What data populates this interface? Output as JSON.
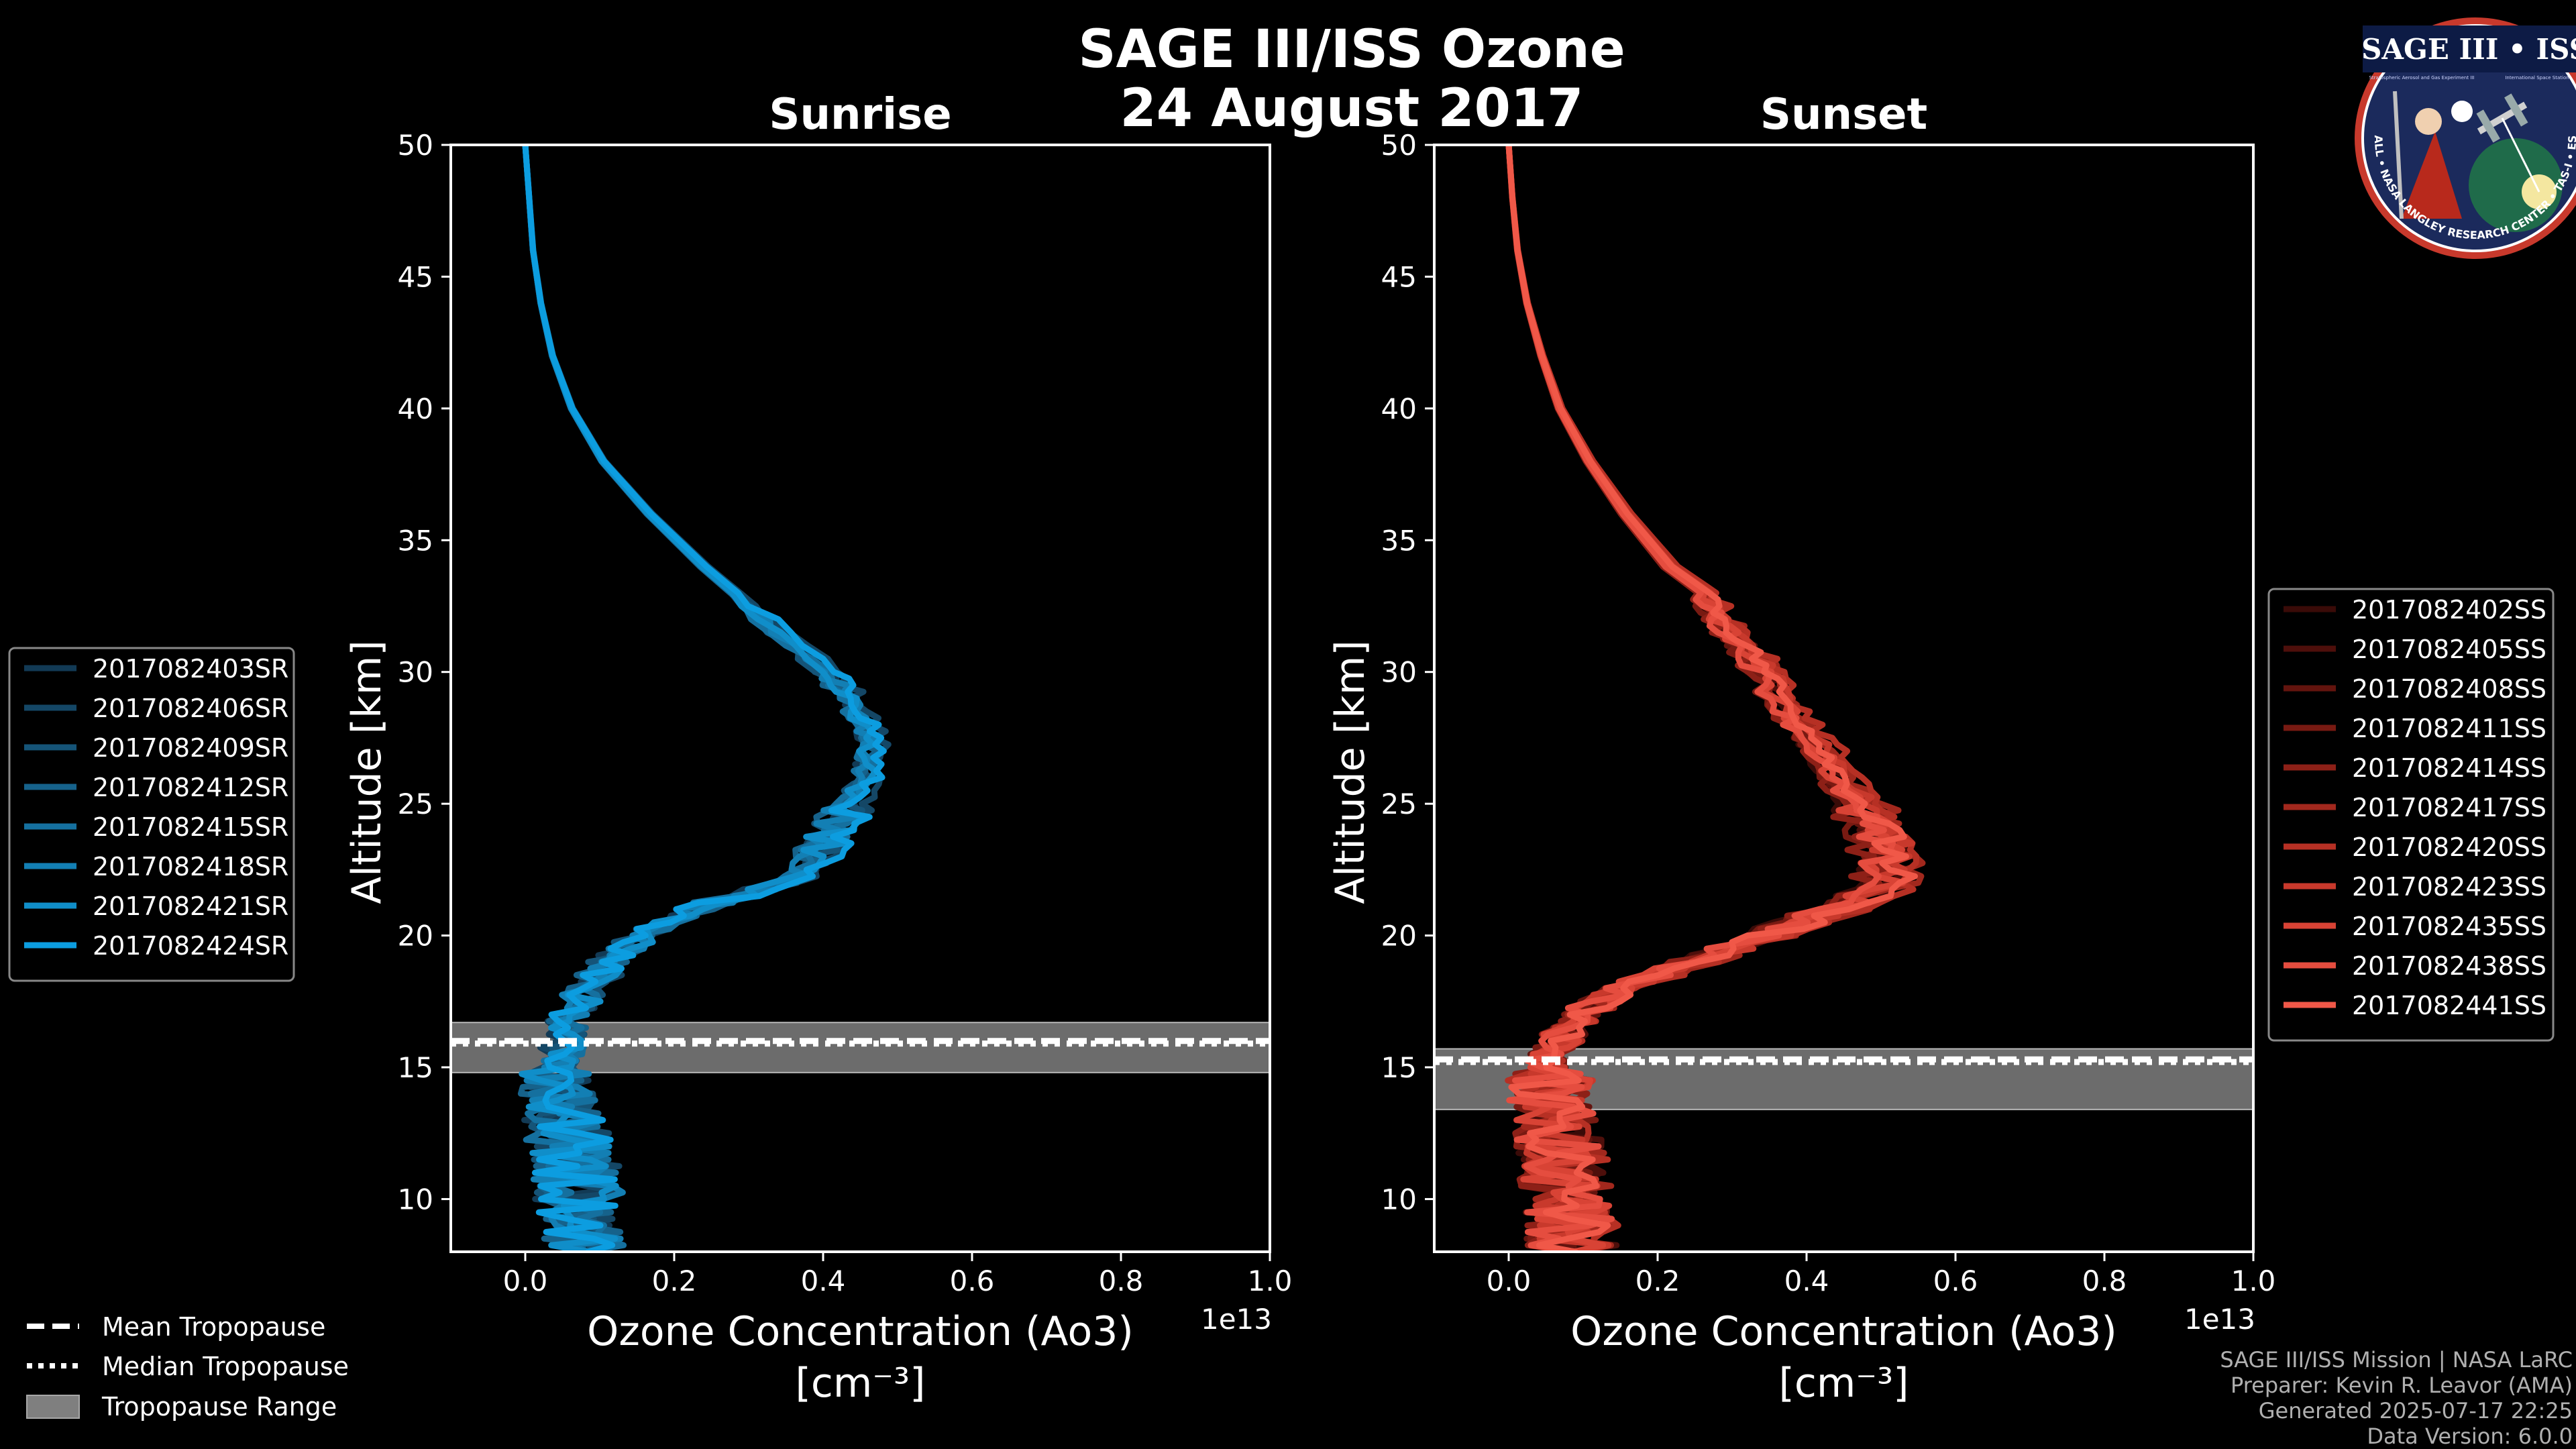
{
  "title_line1": "SAGE III/ISS Ozone",
  "title_line2": "24 August 2017",
  "logo": {
    "text": "SAGE III • ISS",
    "ring_text": "BALL • NASA LANGLEY RESEARCH CENTER • TAS-I • ESA",
    "sub_left": "Stratospheric Aerosol and Gas Experiment III",
    "sub_right": "International Space Station"
  },
  "footer": {
    "line1": "SAGE III/ISS Mission | NASA LaRC",
    "line2": "Preparer: Kevin R. Leavor (AMA)",
    "line3": "Generated 2025-07-17 22:25",
    "line4": "Data Version: 6.0.0"
  },
  "tropo_legend": {
    "mean": "Mean Tropopause",
    "median": "Median Tropopause",
    "range": "Tropopause Range"
  },
  "chart_data": [
    {
      "type": "line",
      "title": "Sunrise",
      "xlabel_line1": "Ozone Concentration (Ao3)",
      "xlabel_line2": "[cm⁻³]",
      "ylabel": "Altitude [km]",
      "x_offset_text": "1e13",
      "xlim": [
        -0.1,
        1.0
      ],
      "ylim": [
        8,
        50
      ],
      "xticks": [
        0.0,
        0.2,
        0.4,
        0.6,
        0.8,
        1.0
      ],
      "xtick_labels": [
        "0.0",
        "0.2",
        "0.4",
        "0.6",
        "0.8",
        "1.0"
      ],
      "yticks": [
        10,
        15,
        20,
        25,
        30,
        35,
        40,
        45,
        50
      ],
      "ytick_labels": [
        "10",
        "15",
        "20",
        "25",
        "30",
        "35",
        "40",
        "45",
        "50"
      ],
      "x_units": "1e13 cm^-3",
      "tropopause": {
        "mean": 16.0,
        "median": 15.9,
        "range": [
          14.8,
          16.7
        ]
      },
      "base_profile": [
        [
          50,
          0.0
        ],
        [
          48,
          0.005
        ],
        [
          46,
          0.01
        ],
        [
          44,
          0.02
        ],
        [
          42,
          0.035
        ],
        [
          40,
          0.06
        ],
        [
          38,
          0.1
        ],
        [
          36,
          0.16
        ],
        [
          34,
          0.23
        ],
        [
          32,
          0.31
        ],
        [
          30,
          0.39
        ],
        [
          29,
          0.42
        ],
        [
          28,
          0.44
        ],
        [
          27,
          0.45
        ],
        [
          26,
          0.44
        ],
        [
          25,
          0.42
        ],
        [
          24,
          0.4
        ],
        [
          23,
          0.38
        ],
        [
          22,
          0.33
        ],
        [
          21,
          0.22
        ],
        [
          20,
          0.15
        ],
        [
          19,
          0.11
        ],
        [
          18,
          0.08
        ],
        [
          17,
          0.06
        ],
        [
          16,
          0.05
        ],
        [
          15,
          0.045
        ],
        [
          14,
          0.05
        ],
        [
          13,
          0.055
        ],
        [
          12,
          0.06
        ],
        [
          11,
          0.065
        ],
        [
          10,
          0.07
        ],
        [
          9,
          0.075
        ],
        [
          8,
          0.08
        ]
      ],
      "series": [
        {
          "name": "2017082403SR",
          "color": "#123a55"
        },
        {
          "name": "2017082406SR",
          "color": "#144766"
        },
        {
          "name": "2017082409SR",
          "color": "#155478"
        },
        {
          "name": "2017082412SR",
          "color": "#16628b"
        },
        {
          "name": "2017082415SR",
          "color": "#15709f"
        },
        {
          "name": "2017082418SR",
          "color": "#137fb4"
        },
        {
          "name": "2017082421SR",
          "color": "#108ec9"
        },
        {
          "name": "2017082424SR",
          "color": "#0c9de0"
        }
      ]
    },
    {
      "type": "line",
      "title": "Sunset",
      "xlabel_line1": "Ozone Concentration (Ao3)",
      "xlabel_line2": "[cm⁻³]",
      "ylabel": "Altitude [km]",
      "x_offset_text": "1e13",
      "xlim": [
        -0.1,
        1.0
      ],
      "ylim": [
        8,
        50
      ],
      "xticks": [
        0.0,
        0.2,
        0.4,
        0.6,
        0.8,
        1.0
      ],
      "xtick_labels": [
        "0.0",
        "0.2",
        "0.4",
        "0.6",
        "0.8",
        "1.0"
      ],
      "yticks": [
        10,
        15,
        20,
        25,
        30,
        35,
        40,
        45,
        50
      ],
      "ytick_labels": [
        "10",
        "15",
        "20",
        "25",
        "30",
        "35",
        "40",
        "45",
        "50"
      ],
      "x_units": "1e13 cm^-3",
      "tropopause": {
        "mean": 15.3,
        "median": 15.2,
        "range": [
          13.4,
          15.7
        ]
      },
      "base_profile": [
        [
          50,
          0.0
        ],
        [
          48,
          0.005
        ],
        [
          46,
          0.012
        ],
        [
          44,
          0.025
        ],
        [
          42,
          0.045
        ],
        [
          40,
          0.07
        ],
        [
          38,
          0.11
        ],
        [
          36,
          0.16
        ],
        [
          34,
          0.22
        ],
        [
          33,
          0.27
        ],
        [
          32,
          0.29
        ],
        [
          31,
          0.32
        ],
        [
          30,
          0.35
        ],
        [
          29,
          0.37
        ],
        [
          28,
          0.4
        ],
        [
          27,
          0.43
        ],
        [
          26,
          0.45
        ],
        [
          25,
          0.48
        ],
        [
          24,
          0.5
        ],
        [
          23,
          0.52
        ],
        [
          22,
          0.52
        ],
        [
          21,
          0.45
        ],
        [
          20,
          0.35
        ],
        [
          19,
          0.25
        ],
        [
          18,
          0.15
        ],
        [
          17,
          0.1
        ],
        [
          16,
          0.07
        ],
        [
          15,
          0.05
        ],
        [
          14,
          0.06
        ],
        [
          13,
          0.065
        ],
        [
          12,
          0.07
        ],
        [
          11,
          0.075
        ],
        [
          10,
          0.08
        ],
        [
          9,
          0.085
        ],
        [
          8,
          0.09
        ]
      ],
      "series": [
        {
          "name": "2017082402SS",
          "color": "#3a0b08"
        },
        {
          "name": "2017082405SS",
          "color": "#4e0f0b"
        },
        {
          "name": "2017082408SS",
          "color": "#63140e"
        },
        {
          "name": "2017082411SS",
          "color": "#781a12"
        },
        {
          "name": "2017082414SS",
          "color": "#8d2017"
        },
        {
          "name": "2017082417SS",
          "color": "#a2281d"
        },
        {
          "name": "2017082420SS",
          "color": "#b63024"
        },
        {
          "name": "2017082423SS",
          "color": "#c8392c"
        },
        {
          "name": "2017082435SS",
          "color": "#d84335"
        },
        {
          "name": "2017082438SS",
          "color": "#e54d3f"
        },
        {
          "name": "2017082441SS",
          "color": "#f05848"
        }
      ]
    }
  ]
}
